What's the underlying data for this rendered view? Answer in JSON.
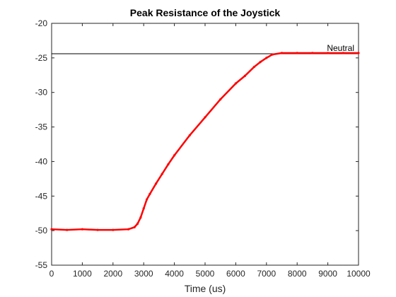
{
  "chart_data": {
    "type": "line",
    "title": "Peak Resistance of the Joystick",
    "xlabel": "Time (us)",
    "ylabel": "",
    "xlim": [
      0,
      10000
    ],
    "ylim": [
      -55,
      -20
    ],
    "xticks": [
      0,
      1000,
      2000,
      3000,
      4000,
      5000,
      6000,
      7000,
      8000,
      9000,
      10000
    ],
    "yticks": [
      -55,
      -50,
      -45,
      -40,
      -35,
      -30,
      -25,
      -20
    ],
    "grid": false,
    "reference_line": {
      "label": "Neutral",
      "y": -24.4
    },
    "series": [
      {
        "color": "#ff0000",
        "x": [
          0,
          500,
          1000,
          1500,
          2000,
          2500,
          2700,
          2800,
          2900,
          3000,
          3100,
          3200,
          3400,
          3600,
          3800,
          4000,
          4500,
          5000,
          5500,
          6000,
          6300,
          6600,
          6800,
          7000,
          7200,
          7500,
          8000,
          8500,
          9000,
          9500,
          10000
        ],
        "y": [
          -49.8,
          -49.9,
          -49.8,
          -49.9,
          -49.9,
          -49.8,
          -49.5,
          -49.0,
          -48.1,
          -46.8,
          -45.5,
          -44.7,
          -43.2,
          -41.8,
          -40.4,
          -39.1,
          -36.2,
          -33.6,
          -31.0,
          -28.7,
          -27.6,
          -26.3,
          -25.6,
          -25.0,
          -24.5,
          -24.3,
          -24.3,
          -24.3,
          -24.3,
          -24.3,
          -24.3
        ]
      }
    ]
  }
}
